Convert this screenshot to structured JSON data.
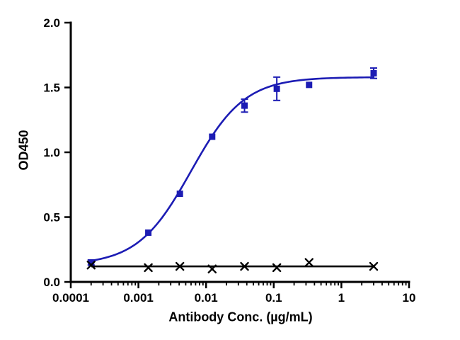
{
  "chart_data": {
    "type": "scatter",
    "title": "",
    "xlabel": "Antibody Conc. (µg/mL)",
    "ylabel": "OD450",
    "x_scale": "log",
    "xlim": [
      0.0001,
      10
    ],
    "ylim": [
      0.0,
      2.0
    ],
    "x_ticks": [
      0.0001,
      0.001,
      0.01,
      0.1,
      1,
      10
    ],
    "x_tick_labels": [
      "0.0001",
      "0.001",
      "0.01",
      "0.1",
      "1",
      "10"
    ],
    "y_ticks": [
      0.0,
      0.5,
      1.0,
      1.5,
      2.0
    ],
    "y_tick_labels": [
      "0.0",
      "0.5",
      "1.0",
      "1.5",
      "2.0"
    ],
    "grid": false,
    "legend": "none",
    "axis_color": "#000000",
    "series": [
      {
        "name": "blue-squares-series",
        "marker": "square",
        "color": "#1c1cb4",
        "x": [
          0.0002,
          0.0014,
          0.0041,
          0.0123,
          0.037,
          0.111,
          0.333,
          3
        ],
        "y": [
          0.15,
          0.38,
          0.68,
          1.12,
          1.36,
          1.49,
          1.52,
          1.61
        ],
        "yerr": [
          0.02,
          0.0,
          0.0,
          0.0,
          0.05,
          0.09,
          0.0,
          0.04
        ],
        "fit": {
          "type": "4pl",
          "bottom": 0.13,
          "top": 1.58,
          "ec50": 0.006,
          "hill": 1.1
        }
      },
      {
        "name": "black-x-series",
        "marker": "x",
        "color": "#000000",
        "x": [
          0.0002,
          0.0014,
          0.0041,
          0.0123,
          0.037,
          0.111,
          0.333,
          3
        ],
        "y": [
          0.13,
          0.11,
          0.12,
          0.1,
          0.12,
          0.11,
          0.15,
          0.12
        ],
        "yerr": [
          0,
          0,
          0,
          0,
          0,
          0,
          0,
          0
        ],
        "fit": {
          "type": "flat",
          "value": 0.12
        }
      }
    ]
  }
}
